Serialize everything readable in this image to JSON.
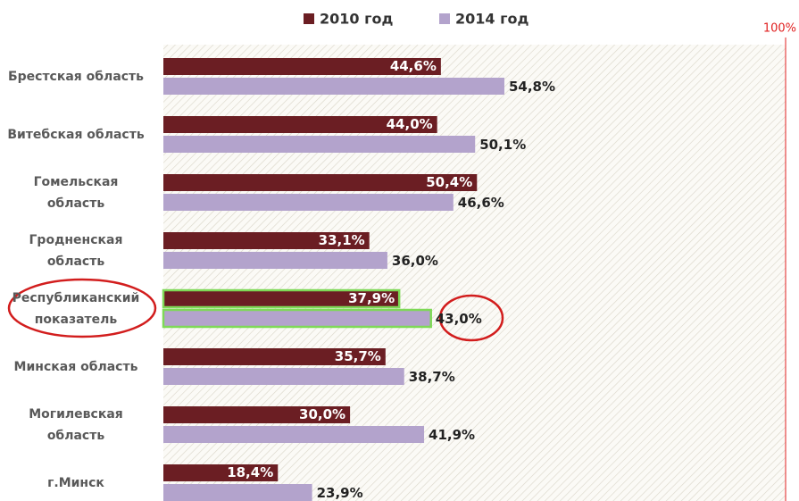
{
  "chart_data": {
    "type": "bar",
    "orientation": "horizontal",
    "categories": [
      "Брестская область",
      "Витебская область",
      "Гомельская\nобласть",
      "Гродненская\nобласть",
      "Республиканский\nпоказатель",
      "Минская область",
      "Могилевская\nобласть",
      "г.Минск"
    ],
    "series": [
      {
        "name": "2010 год",
        "color": "#6b1e23",
        "values": [
          44.6,
          44.0,
          50.4,
          33.1,
          37.9,
          35.7,
          30.0,
          18.4
        ],
        "value_labels": [
          "44,6%",
          "44,0%",
          "50,4%",
          "33,1%",
          "37,9%",
          "35,7%",
          "30,0%",
          "18,4%"
        ]
      },
      {
        "name": "2014 год",
        "color": "#b3a3cc",
        "values": [
          54.8,
          50.1,
          46.6,
          36.0,
          43.0,
          38.7,
          41.9,
          23.9
        ],
        "value_labels": [
          "54,8%",
          "50,1%",
          "46,6%",
          "36,0%",
          "43,0%",
          "38,7%",
          "41,9%",
          "23,9%"
        ]
      }
    ],
    "xlim": [
      0,
      100
    ],
    "xticks": [
      {
        "value": 100,
        "label": "100%"
      }
    ],
    "highlight_index": 4,
    "legend": "top"
  }
}
